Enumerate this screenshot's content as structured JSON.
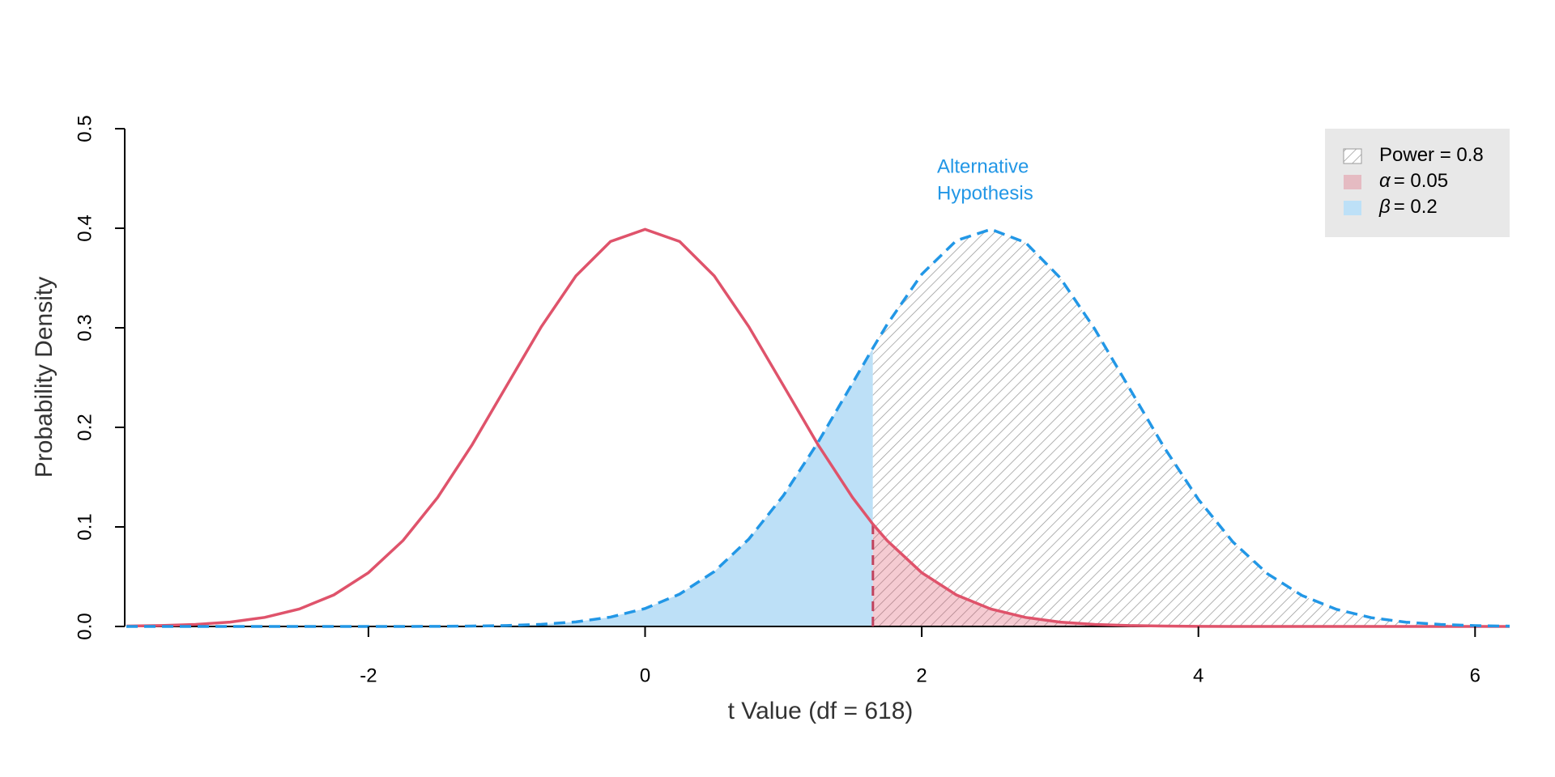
{
  "chart_data": {
    "type": "line",
    "x_label": "t Value (df = 618)",
    "y_label": "Probability Density",
    "x": [
      -3.75,
      -3.5,
      -3.25,
      -3,
      -2.75,
      -2.5,
      -2.25,
      -2,
      -1.75,
      -1.5,
      -1.25,
      -1,
      -0.75,
      -0.5,
      -0.25,
      0,
      0.25,
      0.5,
      0.75,
      1,
      1.25,
      1.5,
      1.647,
      1.75,
      2,
      2.25,
      2.5,
      2.75,
      3,
      3.25,
      3.5,
      3.75,
      4,
      4.25,
      4.5,
      4.75,
      5,
      5.25,
      5.5,
      5.75,
      6,
      6.25
    ],
    "series": [
      {
        "color": "#DF536B",
        "dashed": false,
        "values": [
          0.0004,
          0.0009,
          0.002,
          0.0044,
          0.0091,
          0.0175,
          0.0317,
          0.054,
          0.0863,
          0.1295,
          0.1826,
          0.242,
          0.3011,
          0.3521,
          0.3867,
          0.3989,
          0.3867,
          0.3521,
          0.3011,
          0.242,
          0.1826,
          0.1295,
          0.1027,
          0.0863,
          0.054,
          0.0317,
          0.0175,
          0.0091,
          0.0044,
          0.002,
          0.0009,
          0.0004,
          0.0001,
          0,
          0,
          0,
          0,
          0,
          0,
          0,
          0,
          0
        ]
      },
      {
        "color": "#2297E6",
        "dashed": true,
        "values": [
          0,
          0,
          0,
          0,
          0,
          0,
          0,
          0,
          0,
          0.0001,
          0.0004,
          0.0009,
          0.0021,
          0.0046,
          0.0094,
          0.018,
          0.0325,
          0.0551,
          0.0878,
          0.1315,
          0.1849,
          0.2444,
          0.2797,
          0.3034,
          0.3538,
          0.3876,
          0.3989,
          0.3857,
          0.3503,
          0.2989,
          0.2396,
          0.1804,
          0.1276,
          0.0848,
          0.0529,
          0.031,
          0.0171,
          0.0088,
          0.0043,
          0.002,
          0.0008,
          0.0003
        ]
      }
    ],
    "critical_value": 1.647,
    "annotation_lines": [
      "Alternative",
      "Hypothesis"
    ],
    "annotation_color": "#2297E6",
    "legend": {
      "position": "top-right",
      "entries": [
        {
          "text": "Power = 0.8",
          "fill": "hatch",
          "region": "power"
        },
        {
          "symbol": "α",
          "text": "= 0.05",
          "fill": "#DF536B4D",
          "region": "alpha"
        },
        {
          "symbol": "β",
          "text": "= 0.2",
          "fill": "#BDE0F7",
          "region": "beta"
        }
      ]
    },
    "xlim": [
      -3.75,
      6.25
    ],
    "ylim": [
      0,
      0.5
    ],
    "xticks": [
      -2,
      0,
      2,
      4,
      6
    ],
    "yticks": [
      {
        "value": 0,
        "label": "0.0"
      },
      0.1,
      0.2,
      0.3,
      0.4,
      0.5
    ]
  }
}
